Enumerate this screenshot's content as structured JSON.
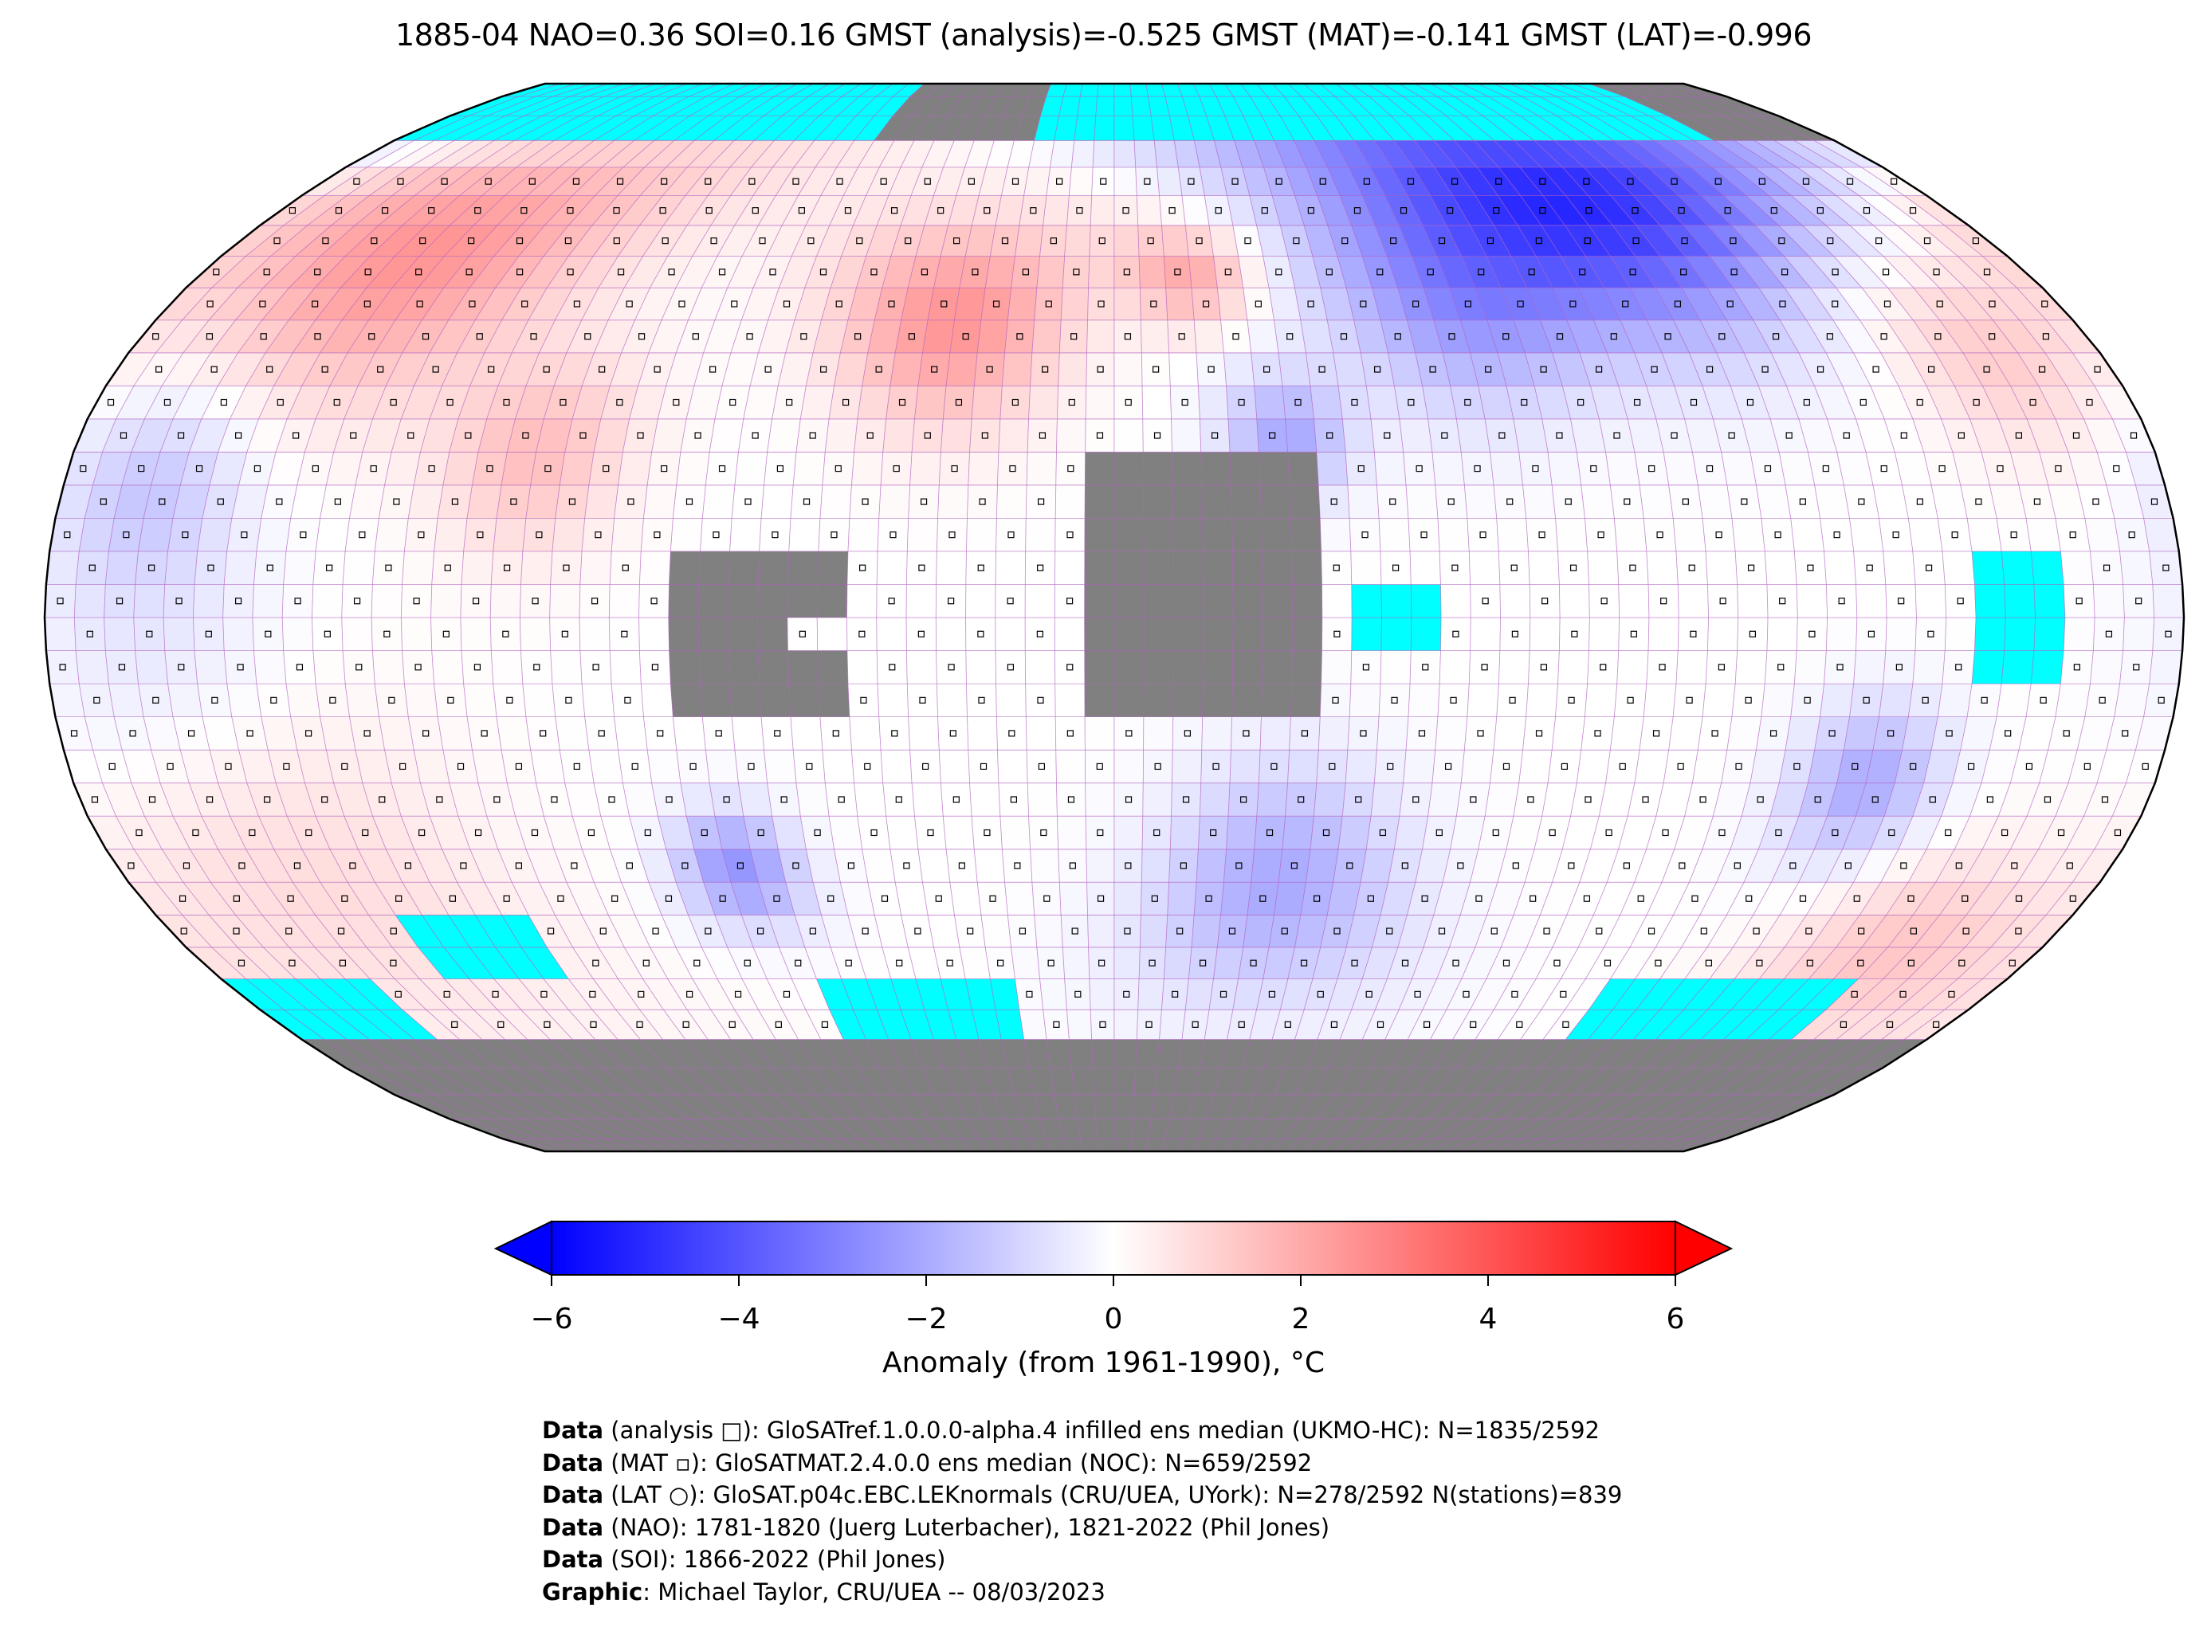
{
  "title": "1885-04 NAO=0.36 SOI=0.16 GMST (analysis)=-0.525 GMST (MAT)=-0.141 GMST (LAT)=-0.996",
  "colors": {
    "cold": "#0000ff",
    "neutral": "#ffffff",
    "warm": "#ff0000",
    "nodata": "#808080",
    "seaice": "#00ffff",
    "grid": "#b060c0"
  },
  "chart_data": {
    "type": "heatmap",
    "projection": "Robinson",
    "grid_resolution_deg": 5,
    "colorbar": {
      "label": "Anomaly (from 1961-1990), °C",
      "range": [
        -6,
        6
      ],
      "extend": "both",
      "ticks": [
        "−6",
        "−4",
        "−2",
        "0",
        "2",
        "4",
        "6"
      ],
      "tick_values": [
        -6,
        -4,
        -2,
        0,
        2,
        4,
        6
      ]
    },
    "anomaly_regions_approx": [
      {
        "region": "NE Pacific / NW America",
        "value": 2.5
      },
      {
        "region": "North Atlantic",
        "value": 2.5
      },
      {
        "region": "Central Europe",
        "value": 2.0
      },
      {
        "region": "Siberia",
        "value": -4.5
      },
      {
        "region": "Central Asia",
        "value": -2.5
      },
      {
        "region": "North Africa / Arabia",
        "value": -2.0
      },
      {
        "region": "Southern South America",
        "value": -2.5
      },
      {
        "region": "South Atlantic / Indian Ocean",
        "value": -2.0
      },
      {
        "region": "Australia",
        "value": -2.0
      },
      {
        "region": "South Pacific",
        "value": 1.0
      },
      {
        "region": "North Pacific",
        "value": 1.5
      }
    ]
  },
  "footer": [
    {
      "bold": "Data",
      "text": " (analysis □): GloSATref.1.0.0.0-alpha.4 infilled ens median (UKMO-HC): N=1835/2592"
    },
    {
      "bold": "Data",
      "text": " (MAT ▫): GloSATMAT.2.4.0.0 ens median (NOC): N=659/2592"
    },
    {
      "bold": "Data",
      "text": " (LAT ○): GloSAT.p04c.EBC.LEKnormals (CRU/UEA, UYork): N=278/2592 N(stations)=839"
    },
    {
      "bold": "Data",
      "text": " (NAO): 1781-1820 (Juerg Luterbacher), 1821-2022 (Phil Jones)"
    },
    {
      "bold": "Data",
      "text": " (SOI): 1866-2022 (Phil Jones)"
    },
    {
      "bold": "Graphic",
      "text": ": Michael Taylor, CRU/UEA -- 08/03/2023"
    }
  ]
}
